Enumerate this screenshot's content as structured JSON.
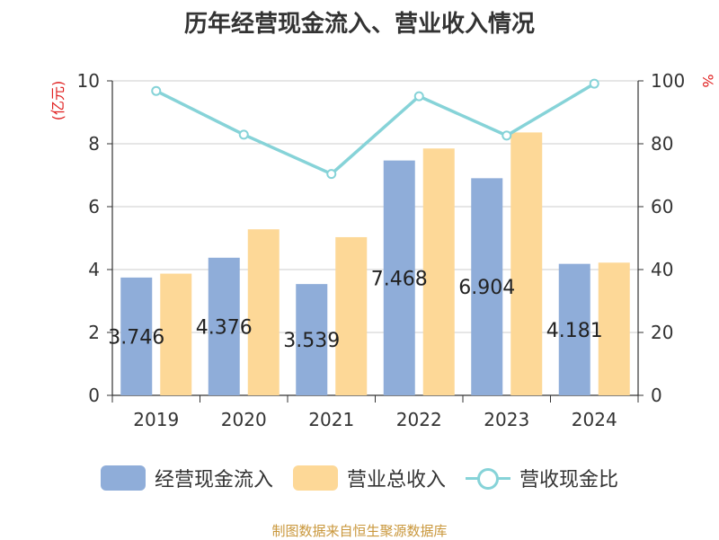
{
  "colors": {
    "bar1": "#8fadd9",
    "bar2": "#fdd897",
    "line": "#86d3d8",
    "axis": "#333333",
    "grid": "#cccccc",
    "unit_left": "#e02020",
    "unit_right": "#e02020",
    "source": "#c9973b"
  },
  "chart_data": {
    "type": "bar",
    "title": "历年经营现金流入、营业收入情况",
    "categories": [
      "2019",
      "2020",
      "2021",
      "2022",
      "2023",
      "2024"
    ],
    "series": [
      {
        "name": "经营现金流入",
        "type": "bar",
        "axis": "left",
        "values": [
          3.746,
          4.376,
          3.539,
          7.468,
          6.904,
          4.181
        ]
      },
      {
        "name": "营业总收入",
        "type": "bar",
        "axis": "left",
        "values": [
          3.87,
          5.28,
          5.03,
          7.85,
          8.36,
          4.22
        ]
      },
      {
        "name": "营收现金比",
        "type": "line",
        "axis": "right",
        "values": [
          96.8,
          82.9,
          70.4,
          95.1,
          82.6,
          99.1
        ]
      }
    ],
    "data_labels": [
      "3.746",
      "4.376",
      "3.539",
      "7.468",
      "6.904",
      "4.181"
    ],
    "y_left": {
      "unit": "(亿元)",
      "min": 0,
      "max": 10,
      "ticks": [
        "0",
        "2",
        "4",
        "6",
        "8",
        "10"
      ]
    },
    "y_right": {
      "unit": "%",
      "min": 0,
      "max": 100,
      "ticks": [
        "0",
        "20",
        "40",
        "60",
        "80",
        "100"
      ]
    },
    "grid": true,
    "legend_position": "bottom"
  },
  "legend": [
    {
      "label": "经营现金流入"
    },
    {
      "label": "营业总收入"
    },
    {
      "label": "营收现金比"
    }
  ],
  "source": "制图数据来自恒生聚源数据库"
}
